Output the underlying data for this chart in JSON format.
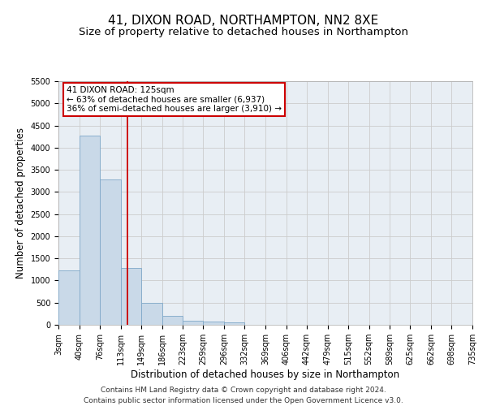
{
  "title": "41, DIXON ROAD, NORTHAMPTON, NN2 8XE",
  "subtitle": "Size of property relative to detached houses in Northampton",
  "xlabel": "Distribution of detached houses by size in Northampton",
  "ylabel": "Number of detached properties",
  "footer_line1": "Contains HM Land Registry data © Crown copyright and database right 2024.",
  "footer_line2": "Contains public sector information licensed under the Open Government Licence v3.0.",
  "annotation_line1": "41 DIXON ROAD: 125sqm",
  "annotation_line2": "← 63% of detached houses are smaller (6,937)",
  "annotation_line3": "36% of semi-detached houses are larger (3,910) →",
  "bar_edges": [
    3,
    40,
    76,
    113,
    149,
    186,
    223,
    259,
    296,
    332,
    369,
    406,
    442,
    479,
    515,
    552,
    589,
    625,
    662,
    698,
    735
  ],
  "bar_heights": [
    1230,
    4270,
    3280,
    1290,
    490,
    195,
    100,
    70,
    50,
    0,
    0,
    0,
    0,
    0,
    0,
    0,
    0,
    0,
    0,
    0
  ],
  "bar_color": "#c9d9e8",
  "bar_edge_color": "#7fa8c9",
  "vline_color": "#cc0000",
  "vline_x": 125,
  "ylim": [
    0,
    5500
  ],
  "yticks": [
    0,
    500,
    1000,
    1500,
    2000,
    2500,
    3000,
    3500,
    4000,
    4500,
    5000,
    5500
  ],
  "grid_color": "#cccccc",
  "background_color": "#e8eef4",
  "annotation_box_facecolor": "#ffffff",
  "annotation_box_edgecolor": "#cc0000",
  "title_fontsize": 11,
  "subtitle_fontsize": 9.5,
  "axis_label_fontsize": 8.5,
  "tick_fontsize": 7,
  "annotation_fontsize": 7.5,
  "footer_fontsize": 6.5
}
